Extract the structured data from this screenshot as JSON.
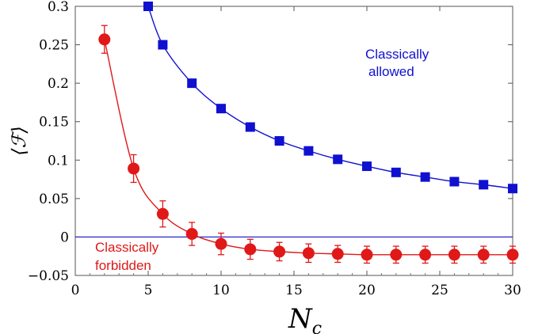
{
  "chart_data": {
    "type": "line",
    "title": "",
    "xlabel": "N_c",
    "ylabel": "⟨ℱ⟩",
    "xlim": [
      0,
      30
    ],
    "ylim": [
      -0.05,
      0.3
    ],
    "x_ticks": [
      0,
      5,
      10,
      15,
      20,
      25,
      30
    ],
    "y_ticks": [
      -0.05,
      0,
      0.05,
      0.1,
      0.15,
      0.2,
      0.25,
      0.3
    ],
    "x_tick_labels": [
      "0",
      "5",
      "10",
      "15",
      "20",
      "25",
      "30"
    ],
    "y_tick_labels": [
      "−0.05",
      "0",
      "0.05",
      "0.1",
      "0.15",
      "0.2",
      "0.25",
      "0.3"
    ],
    "grid": false,
    "reference_line": {
      "y": 0,
      "color": "#3333cc"
    },
    "series": [
      {
        "label": "Classically allowed",
        "color": "#1010d0",
        "marker": "square",
        "x": [
          5,
          6,
          8,
          10,
          12,
          14,
          16,
          18,
          20,
          22,
          24,
          26,
          28,
          30
        ],
        "y": [
          0.3,
          0.25,
          0.2,
          0.167,
          0.143,
          0.125,
          0.112,
          0.101,
          0.092,
          0.084,
          0.078,
          0.072,
          0.068,
          0.063
        ]
      },
      {
        "label": "Classically forbidden",
        "color": "#e01818",
        "marker": "circle",
        "x": [
          2,
          4,
          6,
          8,
          10,
          12,
          14,
          16,
          18,
          20,
          22,
          24,
          26,
          28,
          30
        ],
        "y": [
          0.257,
          0.089,
          0.03,
          0.004,
          -0.009,
          -0.016,
          -0.019,
          -0.021,
          -0.022,
          -0.023,
          -0.023,
          -0.023,
          -0.023,
          -0.023,
          -0.023
        ],
        "yerr": [
          0.018,
          0.018,
          0.017,
          0.015,
          0.014,
          0.013,
          0.012,
          0.012,
          0.011,
          0.011,
          0.011,
          0.011,
          0.011,
          0.011,
          0.011
        ]
      }
    ],
    "annotations": [
      {
        "text_lines": [
          "Classically",
          "allowed"
        ],
        "color": "#1010d0",
        "anchor": "upper right, beside the blue squares"
      },
      {
        "text_lines": [
          "Classically",
          "forbidden"
        ],
        "color": "#e01818",
        "anchor": "lower left, beside the red circles"
      }
    ]
  }
}
